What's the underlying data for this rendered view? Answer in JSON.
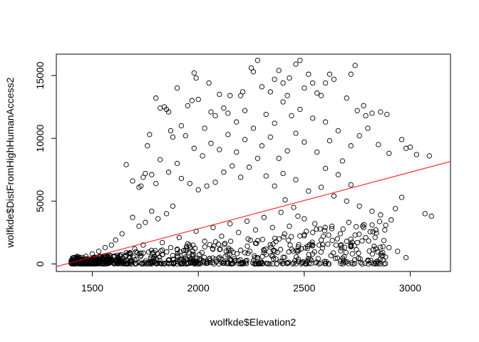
{
  "chart_data": {
    "type": "scatter",
    "xlabel": "wolfkde$Elevation2",
    "ylabel": "wolfkde$DistFromHighHumanAccess2",
    "xlim": [
      1330,
      3190
    ],
    "ylim": [
      -600,
      16700
    ],
    "x_ticks": [
      1500,
      2000,
      2500,
      3000
    ],
    "y_ticks": [
      0,
      5000,
      10000,
      15000
    ],
    "point_style": "open-circle",
    "point_color": "#000000",
    "regression_line": {
      "color": "#ff0000",
      "intercept": -6200,
      "slope": 4.5,
      "x_range": [
        1330,
        3190
      ]
    },
    "points": [
      [
        1660,
        7900
      ],
      [
        1690,
        6600
      ],
      [
        1720,
        6100
      ],
      [
        1730,
        6200
      ],
      [
        1740,
        6900
      ],
      [
        1750,
        7200
      ],
      [
        1760,
        9400
      ],
      [
        1770,
        10300
      ],
      [
        1780,
        7100
      ],
      [
        1800,
        13200
      ],
      [
        1820,
        12400
      ],
      [
        1840,
        12500
      ],
      [
        1850,
        12300
      ],
      [
        1860,
        12100
      ],
      [
        1870,
        10600
      ],
      [
        1880,
        10100
      ],
      [
        1900,
        14000
      ],
      [
        1920,
        11000
      ],
      [
        1950,
        12600
      ],
      [
        1970,
        13000
      ],
      [
        1980,
        15200
      ],
      [
        1990,
        14800
      ],
      [
        2000,
        13100
      ],
      [
        2030,
        10800
      ],
      [
        2050,
        14400
      ],
      [
        2060,
        12100
      ],
      [
        2080,
        11800
      ],
      [
        2100,
        13500
      ],
      [
        2120,
        12400
      ],
      [
        2140,
        12000
      ],
      [
        2150,
        13400
      ],
      [
        2180,
        11300
      ],
      [
        2200,
        13400
      ],
      [
        2210,
        13700
      ],
      [
        2220,
        12200
      ],
      [
        2250,
        15600
      ],
      [
        2260,
        15300
      ],
      [
        2280,
        16200
      ],
      [
        2300,
        14100
      ],
      [
        2320,
        11900
      ],
      [
        2340,
        13700
      ],
      [
        2360,
        14700
      ],
      [
        2380,
        15400
      ],
      [
        2400,
        14400
      ],
      [
        2420,
        13400
      ],
      [
        2430,
        14800
      ],
      [
        2460,
        15900
      ],
      [
        2480,
        16200
      ],
      [
        2500,
        14000
      ],
      [
        2520,
        15100
      ],
      [
        2540,
        14400
      ],
      [
        2560,
        13600
      ],
      [
        2580,
        13400
      ],
      [
        2600,
        14400
      ],
      [
        2620,
        15100
      ],
      [
        2640,
        14700
      ],
      [
        2700,
        13200
      ],
      [
        2720,
        15100
      ],
      [
        2740,
        15800
      ],
      [
        2750,
        12200
      ],
      [
        2780,
        12600
      ],
      [
        2790,
        11800
      ],
      [
        2800,
        10800
      ],
      [
        2820,
        12000
      ],
      [
        2860,
        12100
      ],
      [
        2890,
        11900
      ],
      [
        2960,
        9900
      ],
      [
        2980,
        9200
      ],
      [
        3000,
        9300
      ],
      [
        3030,
        8700
      ],
      [
        3090,
        8600
      ],
      [
        3070,
        4000
      ],
      [
        3100,
        3800
      ],
      [
        2960,
        5300
      ],
      [
        2930,
        4400
      ],
      [
        2910,
        3500
      ],
      [
        2880,
        2700
      ],
      [
        2820,
        3100
      ],
      [
        2780,
        2900
      ],
      [
        2740,
        2300
      ],
      [
        2700,
        1800
      ],
      [
        2650,
        1500
      ],
      [
        2580,
        1900
      ],
      [
        2540,
        2500
      ],
      [
        2500,
        3600
      ],
      [
        2450,
        4500
      ],
      [
        2410,
        5100
      ],
      [
        2360,
        6200
      ],
      [
        2320,
        7000
      ],
      [
        2280,
        8400
      ],
      [
        2240,
        7700
      ],
      [
        2200,
        6900
      ],
      [
        2160,
        7800
      ],
      [
        2120,
        7300
      ],
      [
        2080,
        6500
      ],
      [
        2040,
        6200
      ],
      [
        2000,
        5900
      ],
      [
        1960,
        6400
      ],
      [
        1920,
        6800
      ],
      [
        1880,
        4600
      ],
      [
        1850,
        4000
      ],
      [
        1810,
        3600
      ],
      [
        1780,
        4200
      ],
      [
        1750,
        3300
      ],
      [
        1720,
        3000
      ],
      [
        1690,
        3700
      ],
      [
        1640,
        2400
      ],
      [
        1610,
        1900
      ],
      [
        1590,
        1500
      ],
      [
        1560,
        1300
      ],
      [
        1530,
        1000
      ],
      [
        1500,
        800
      ],
      [
        1470,
        600
      ],
      [
        1450,
        400
      ],
      [
        1420,
        200
      ],
      [
        1410,
        450
      ],
      [
        1430,
        100
      ],
      [
        1480,
        300
      ],
      [
        1520,
        250
      ],
      [
        1550,
        150
      ],
      [
        1580,
        700
      ],
      [
        1620,
        500
      ],
      [
        1660,
        900
      ],
      [
        1700,
        1200
      ],
      [
        1740,
        1500
      ],
      [
        1790,
        900
      ],
      [
        1830,
        1700
      ],
      [
        1870,
        1300
      ],
      [
        1910,
        2100
      ],
      [
        1950,
        1600
      ],
      [
        1990,
        2600
      ],
      [
        2030,
        1800
      ],
      [
        2070,
        2900
      ],
      [
        2110,
        2200
      ],
      [
        2150,
        3200
      ],
      [
        2190,
        2500
      ],
      [
        2230,
        3400
      ],
      [
        2270,
        2700
      ],
      [
        2310,
        3700
      ],
      [
        2350,
        2900
      ],
      [
        2390,
        4100
      ],
      [
        2430,
        3000
      ],
      [
        2470,
        3800
      ],
      [
        2510,
        2600
      ],
      [
        2550,
        3200
      ],
      [
        2590,
        2200
      ],
      [
        2630,
        3000
      ],
      [
        2670,
        2400
      ],
      [
        2710,
        3300
      ],
      [
        2750,
        1700
      ],
      [
        2790,
        2100
      ],
      [
        2830,
        1400
      ],
      [
        2870,
        900
      ],
      [
        2900,
        1300
      ],
      [
        2940,
        1000
      ],
      [
        2980,
        500
      ],
      [
        2500,
        9700
      ],
      [
        2560,
        8900
      ],
      [
        2620,
        9800
      ],
      [
        2680,
        8200
      ],
      [
        2420,
        9000
      ],
      [
        2460,
        10400
      ],
      [
        2380,
        8400
      ],
      [
        2340,
        10100
      ],
      [
        2300,
        9400
      ],
      [
        2260,
        10800
      ],
      [
        2220,
        9900
      ],
      [
        2180,
        8900
      ],
      [
        2140,
        10300
      ],
      [
        2100,
        9100
      ],
      [
        2060,
        9600
      ],
      [
        2020,
        8600
      ],
      [
        1980,
        9200
      ],
      [
        1940,
        10200
      ],
      [
        1900,
        8000
      ],
      [
        1860,
        7300
      ],
      [
        1820,
        8300
      ],
      [
        1800,
        6400
      ],
      [
        2600,
        11300
      ],
      [
        2660,
        10600
      ],
      [
        2720,
        9400
      ],
      [
        2760,
        10200
      ],
      [
        2540,
        11600
      ],
      [
        2480,
        12300
      ],
      [
        2440,
        11800
      ],
      [
        2400,
        12900
      ],
      [
        2360,
        11200
      ],
      [
        2900,
        8800
      ],
      [
        2850,
        9500
      ],
      [
        2640,
        5400
      ],
      [
        2580,
        6100
      ],
      [
        2520,
        5800
      ],
      [
        2460,
        6700
      ],
      [
        2400,
        7200
      ],
      [
        2700,
        5000
      ],
      [
        2760,
        4600
      ],
      [
        2820,
        4200
      ],
      [
        2860,
        3900
      ],
      [
        2600,
        7600
      ],
      [
        2660,
        7100
      ],
      [
        2720,
        6300
      ]
    ]
  }
}
